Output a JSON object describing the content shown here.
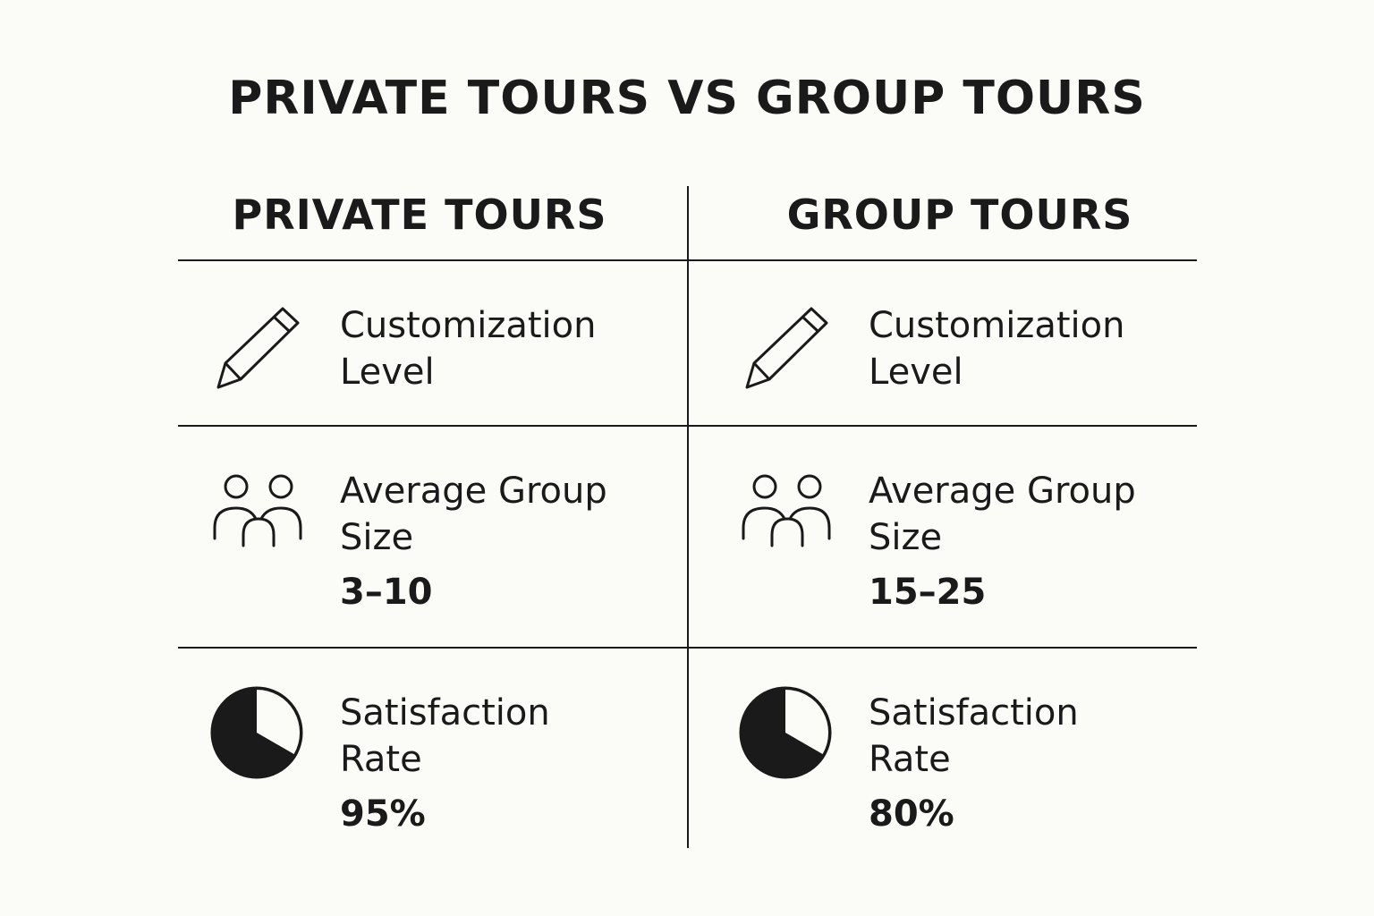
{
  "title": "PRIVATE TOURS VS GROUP TOURS",
  "columns": [
    {
      "heading": "PRIVATE TOURS",
      "rows": [
        {
          "icon": "pencil-icon",
          "label_line1": "Customization",
          "label_line2": "Level",
          "value": ""
        },
        {
          "icon": "people-icon",
          "label_line1": "Average Group",
          "label_line2": "Size",
          "value": "3–10"
        },
        {
          "icon": "pie-chart-icon",
          "label_line1": "Satisfaction",
          "label_line2": "Rate",
          "value": "95%"
        }
      ]
    },
    {
      "heading": "GROUP TOURS",
      "rows": [
        {
          "icon": "pencil-icon",
          "label_line1": "Customization",
          "label_line2": "Level",
          "value": ""
        },
        {
          "icon": "people-icon",
          "label_line1": "Average Group",
          "label_line2": "Size",
          "value": "15–25"
        },
        {
          "icon": "pie-chart-icon",
          "label_line1": "Satisfaction",
          "label_line2": "Rate",
          "value": "80%"
        }
      ]
    }
  ],
  "colors": {
    "ink": "#1a1a1a",
    "background": "#fbfbf8"
  }
}
